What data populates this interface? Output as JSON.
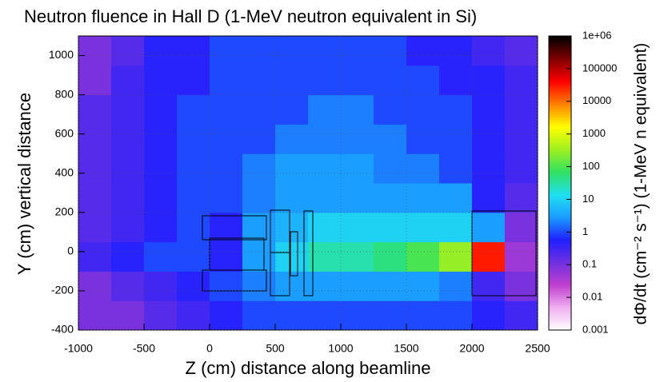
{
  "chart_data": {
    "type": "heatmap",
    "title": "Neutron fluence in Hall D (1-MeV neutron equivalent in Si)",
    "x_label": "Z (cm) distance along beamline",
    "y_label": "Y (cm) vertical distance",
    "colorbar_label": "dΦ/dt (cm⁻² s⁻¹) (1-MeV n equivalent)",
    "xlim": [
      -1000,
      2500
    ],
    "ylim": [
      -400,
      1100
    ],
    "xticks": [
      -1000,
      -500,
      0,
      500,
      1000,
      1500,
      2000,
      2500
    ],
    "yticks": [
      -400,
      -200,
      0,
      200,
      400,
      600,
      800,
      1000
    ],
    "x_bins": [
      -1000,
      -750,
      -500,
      -250,
      0,
      250,
      500,
      750,
      1000,
      1250,
      1500,
      1750,
      2000,
      2250,
      2500
    ],
    "y_bins": [
      -400,
      -250,
      -100,
      50,
      200,
      350,
      500,
      650,
      800,
      950,
      1100
    ],
    "z": [
      [
        0.1,
        0.1,
        0.2,
        0.3,
        0.5,
        1,
        1,
        1,
        1,
        1,
        1,
        1,
        0.5,
        0.3
      ],
      [
        0.1,
        0.2,
        0.3,
        0.5,
        1,
        2,
        3,
        3,
        3,
        3,
        3,
        2,
        0.3,
        0.1
      ],
      [
        0.3,
        0.5,
        1,
        1,
        0.5,
        3,
        10,
        30,
        30,
        50,
        100,
        300,
        30000,
        0.05
      ],
      [
        0.2,
        0.3,
        0.5,
        1,
        0.5,
        3,
        5,
        10,
        10,
        10,
        10,
        10,
        3,
        0.1
      ],
      [
        0.2,
        0.3,
        0.5,
        1,
        1,
        2,
        3,
        3,
        3,
        3,
        3,
        3,
        0.5,
        0.2
      ],
      [
        0.2,
        0.3,
        0.5,
        1,
        1,
        2,
        3,
        3,
        3,
        2,
        2,
        1,
        0.5,
        0.3
      ],
      [
        0.2,
        0.3,
        0.5,
        1,
        1,
        1,
        2,
        2,
        2,
        2,
        1,
        1,
        0.5,
        0.3
      ],
      [
        0.2,
        0.3,
        0.5,
        1,
        1,
        1,
        1,
        2,
        2,
        1,
        1,
        1,
        0.5,
        0.3
      ],
      [
        0.1,
        0.3,
        0.5,
        0.5,
        1,
        1,
        1,
        1,
        1,
        1,
        1,
        0.5,
        0.5,
        0.3
      ],
      [
        0.1,
        0.2,
        0.5,
        0.5,
        1,
        1,
        1,
        1,
        1,
        1,
        0.5,
        0.5,
        0.3,
        0.2
      ]
    ],
    "zlim": [
      0.001,
      1000000
    ],
    "zscale": "log",
    "zticks": [
      {
        "value": 1000000,
        "label": "1e+06"
      },
      100000,
      10000,
      1000,
      100,
      10,
      1,
      0.1,
      0.01,
      0.001
    ],
    "colorscale": [
      "#ffffff",
      "#f0b0f0",
      "#c040d0",
      "#7030e0",
      "#2020ff",
      "#1a9cff",
      "#20e0f0",
      "#30e060",
      "#a0f020",
      "#ffff00",
      "#ff8000",
      "#ff0000",
      "#800000",
      "#000000"
    ],
    "grid": true
  }
}
